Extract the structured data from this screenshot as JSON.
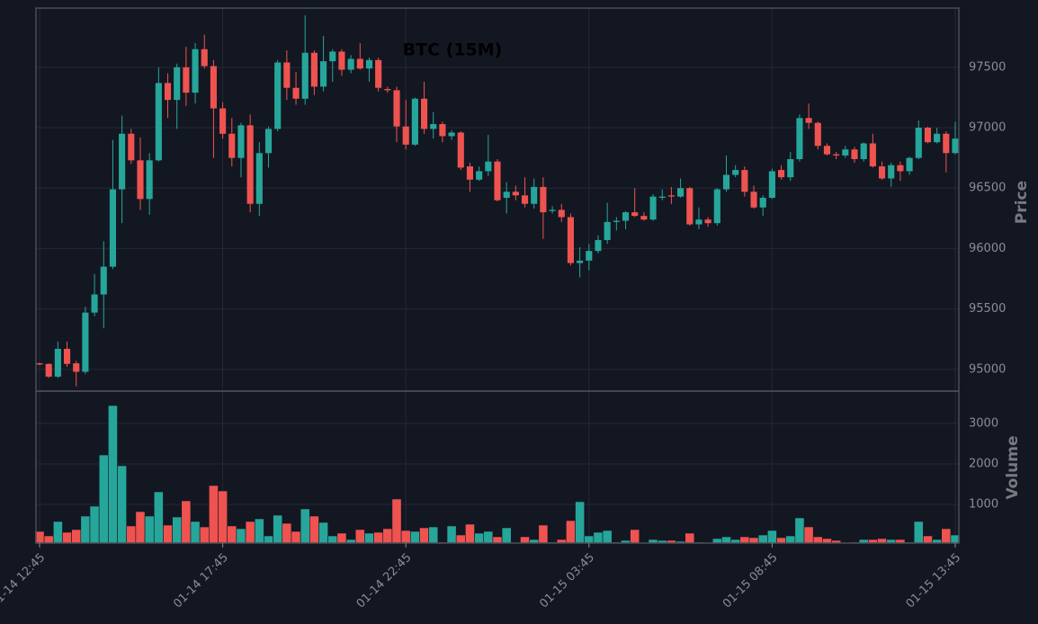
{
  "chart_data": {
    "type": "candlestick",
    "title": "BTC (15M)",
    "ylabel": "Price",
    "y2label": "Volume",
    "up_color": "#26a69a",
    "down_color": "#ef5350",
    "grid": true,
    "x": [
      "01-14 12:45",
      "01-14 13:00",
      "01-14 13:15",
      "01-14 13:30",
      "01-14 13:45",
      "01-14 14:00",
      "01-14 14:15",
      "01-14 14:30",
      "01-14 14:45",
      "01-14 15:00",
      "01-14 15:15",
      "01-14 15:30",
      "01-14 15:45",
      "01-14 16:00",
      "01-14 16:15",
      "01-14 16:30",
      "01-14 16:45",
      "01-14 17:00",
      "01-14 17:15",
      "01-14 17:30",
      "01-14 17:45",
      "01-14 18:00",
      "01-14 18:15",
      "01-14 18:30",
      "01-14 18:45",
      "01-14 19:00",
      "01-14 19:15",
      "01-14 19:30",
      "01-14 19:45",
      "01-14 20:00",
      "01-14 20:15",
      "01-14 20:30",
      "01-14 20:45",
      "01-14 21:00",
      "01-14 21:15",
      "01-14 21:30",
      "01-14 21:45",
      "01-14 22:00",
      "01-14 22:15",
      "01-14 22:30",
      "01-14 22:45",
      "01-14 23:00",
      "01-14 23:15",
      "01-14 23:30",
      "01-14 23:45",
      "01-15 00:00",
      "01-15 00:15",
      "01-15 00:30",
      "01-15 00:45",
      "01-15 01:00",
      "01-15 01:15",
      "01-15 01:30",
      "01-15 01:45",
      "01-15 02:00",
      "01-15 02:15",
      "01-15 02:30",
      "01-15 02:45",
      "01-15 03:00",
      "01-15 03:15",
      "01-15 03:30",
      "01-15 03:45",
      "01-15 04:00",
      "01-15 04:15",
      "01-15 04:30",
      "01-15 04:45",
      "01-15 05:00",
      "01-15 05:15",
      "01-15 05:30",
      "01-15 05:45",
      "01-15 06:00",
      "01-15 06:15",
      "01-15 06:30",
      "01-15 06:45",
      "01-15 07:00",
      "01-15 07:15",
      "01-15 07:30",
      "01-15 07:45",
      "01-15 08:00",
      "01-15 08:15",
      "01-15 08:30",
      "01-15 08:45",
      "01-15 09:00",
      "01-15 09:15",
      "01-15 09:30",
      "01-15 09:45",
      "01-15 10:00",
      "01-15 10:15",
      "01-15 10:30",
      "01-15 10:45",
      "01-15 11:00",
      "01-15 11:15",
      "01-15 11:30",
      "01-15 11:45",
      "01-15 12:00",
      "01-15 12:15",
      "01-15 12:30",
      "01-15 12:45",
      "01-15 13:00",
      "01-15 13:15",
      "01-15 13:30",
      "01-15 13:45"
    ],
    "xticks": [
      "01-14 12:45",
      "01-14 17:45",
      "01-14 22:45",
      "01-15 03:45",
      "01-15 08:45",
      "01-15 13:45"
    ],
    "open": [
      95050,
      95045,
      94940,
      95170,
      95050,
      94980,
      95470,
      95620,
      95850,
      96490,
      96950,
      96730,
      96410,
      96730,
      97370,
      97230,
      97500,
      97290,
      97650,
      97510,
      97160,
      96950,
      96750,
      97020,
      96370,
      96790,
      96990,
      97540,
      97330,
      97240,
      97620,
      97340,
      97550,
      97630,
      97480,
      97570,
      97490,
      97560,
      97320,
      97310,
      97010,
      96860,
      97240,
      96990,
      97030,
      96930,
      96960,
      96680,
      96570,
      96640,
      96720,
      96420,
      96470,
      96440,
      96370,
      96510,
      96310,
      96320,
      96260,
      95880,
      95900,
      95980,
      96070,
      96220,
      96230,
      96300,
      96270,
      96240,
      96420,
      96440,
      96430,
      96500,
      96200,
      96240,
      96210,
      96490,
      96610,
      96650,
      96470,
      96340,
      96420,
      96650,
      96590,
      96740,
      97080,
      97040,
      96850,
      96780,
      96770,
      96820,
      96740,
      96870,
      96680,
      96580,
      96690,
      96640,
      96750,
      97000,
      96880,
      96950,
      96790
    ],
    "high": [
      95055,
      95050,
      95230,
      95230,
      95070,
      95520,
      95790,
      96060,
      96900,
      97100,
      96990,
      96920,
      96790,
      97500,
      97450,
      97530,
      97670,
      97700,
      97770,
      97560,
      97210,
      97080,
      97040,
      97110,
      96880,
      97010,
      97560,
      97640,
      97460,
      97930,
      97640,
      97760,
      97650,
      97650,
      97600,
      97700,
      97580,
      97580,
      97340,
      97340,
      97230,
      97250,
      97380,
      97130,
      97050,
      96980,
      96970,
      96710,
      96680,
      96940,
      96740,
      96550,
      96520,
      96590,
      96580,
      96590,
      96350,
      96370,
      96290,
      96010,
      96040,
      96110,
      96380,
      96260,
      96310,
      96500,
      96300,
      96450,
      96490,
      96510,
      96580,
      96510,
      96340,
      96260,
      96500,
      96770,
      96690,
      96680,
      96520,
      96440,
      96660,
      96690,
      96800,
      97110,
      97200,
      97050,
      96870,
      96800,
      96850,
      96840,
      96880,
      96950,
      96720,
      96710,
      96720,
      96760,
      97060,
      97010,
      97000,
      96970,
      97050
    ],
    "low": [
      95035,
      94930,
      94930,
      95020,
      94860,
      94960,
      95440,
      95340,
      95830,
      96210,
      96700,
      96320,
      96280,
      96720,
      97080,
      96990,
      97180,
      97200,
      97490,
      96750,
      96910,
      96680,
      96590,
      96300,
      96270,
      96670,
      96970,
      97230,
      97190,
      97190,
      97270,
      97300,
      97380,
      97430,
      97450,
      97480,
      97380,
      97300,
      97290,
      96880,
      96820,
      96850,
      96950,
      96910,
      96880,
      96900,
      96650,
      96470,
      96560,
      96600,
      96390,
      96290,
      96400,
      96340,
      96330,
      96080,
      96290,
      96220,
      95860,
      95760,
      95820,
      95960,
      96040,
      96150,
      96160,
      96260,
      96230,
      96230,
      96400,
      96370,
      96420,
      96190,
      96160,
      96180,
      96190,
      96470,
      96590,
      96430,
      96330,
      96270,
      96410,
      96570,
      96560,
      96720,
      96990,
      96820,
      96770,
      96740,
      96750,
      96710,
      96720,
      96670,
      96570,
      96510,
      96560,
      96610,
      96740,
      96870,
      96870,
      96630,
      96780
    ],
    "close": [
      95040,
      94940,
      95170,
      95045,
      94980,
      95470,
      95620,
      95850,
      96490,
      96950,
      96730,
      96410,
      96730,
      97370,
      97230,
      97500,
      97290,
      97650,
      97510,
      97160,
      96950,
      96750,
      97020,
      96370,
      96790,
      96990,
      97540,
      97330,
      97240,
      97620,
      97340,
      97550,
      97630,
      97480,
      97570,
      97490,
      97560,
      97330,
      97310,
      97010,
      96860,
      97240,
      96990,
      97030,
      96930,
      96960,
      96670,
      96570,
      96640,
      96720,
      96400,
      96470,
      96440,
      96370,
      96510,
      96300,
      96320,
      96260,
      95880,
      95900,
      95980,
      96070,
      96220,
      96230,
      96300,
      96270,
      96240,
      96430,
      96430,
      96430,
      96500,
      96200,
      96240,
      96210,
      96490,
      96610,
      96650,
      96470,
      96340,
      96420,
      96640,
      96590,
      96740,
      97080,
      97040,
      96850,
      96780,
      96770,
      96820,
      96740,
      96870,
      96680,
      96580,
      96690,
      96640,
      96750,
      97000,
      96880,
      96950,
      96790,
      96910
    ],
    "volume": [
      333,
      222,
      578,
      311,
      378,
      711,
      956,
      2222,
      3444,
      1956,
      467,
      822,
      711,
      1311,
      489,
      689,
      1089,
      578,
      444,
      1467,
      1333,
      467,
      400,
      578,
      644,
      222,
      733,
      533,
      333,
      889,
      711,
      556,
      222,
      289,
      133,
      378,
      289,
      311,
      400,
      1133,
      356,
      333,
      422,
      444,
      67,
      467,
      244,
      511,
      289,
      333,
      200,
      422,
      50,
      200,
      133,
      489,
      67,
      133,
      600,
      1067,
      222,
      311,
      356,
      67,
      111,
      378,
      50,
      133,
      111,
      111,
      89,
      289,
      67,
      50,
      156,
      200,
      133,
      200,
      178,
      244,
      356,
      178,
      222,
      667,
      444,
      200,
      156,
      111,
      50,
      67,
      133,
      133,
      156,
      133,
      133,
      67,
      578,
      222,
      133,
      400,
      244
    ],
    "ylim": [
      94820,
      97990
    ],
    "yticks": [
      95000,
      95500,
      96000,
      96500,
      97000,
      97500
    ],
    "y2lim": [
      44,
      3800
    ],
    "y2ticks": [
      1000,
      2000,
      3000
    ]
  }
}
